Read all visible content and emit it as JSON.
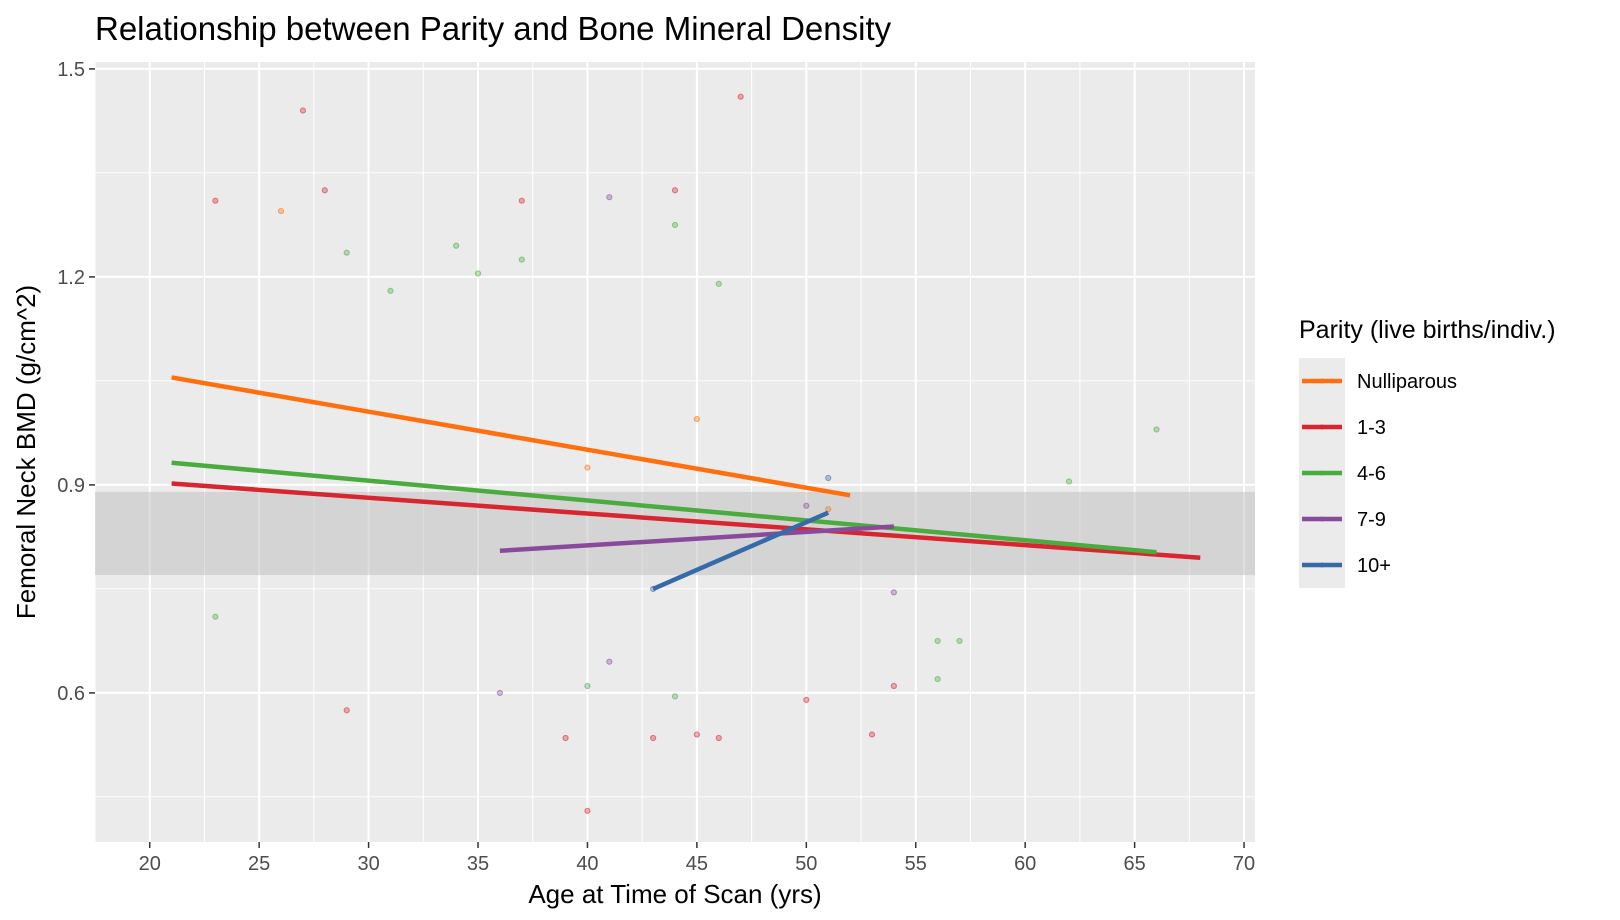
{
  "chart_data": {
    "type": "scatter",
    "title": "Relationship between Parity and Bone Mineral Density",
    "xlabel": "Age at Time of Scan (yrs)",
    "ylabel": "Femoral Neck BMD (g/cm^2)",
    "xlim": [
      17.5,
      70.5
    ],
    "ylim": [
      0.385,
      1.51
    ],
    "x_ticks": [
      20,
      25,
      30,
      35,
      40,
      45,
      50,
      55,
      60,
      65,
      70
    ],
    "y_ticks": [
      0.6,
      0.9,
      1.2,
      1.5
    ],
    "y_ticks_labels": [
      "0.6",
      "0.9",
      "1.2",
      "1.5"
    ],
    "grid": true,
    "reference_band": {
      "y_range": [
        0.77,
        0.89
      ]
    },
    "legend": {
      "title": "Parity (live births/indiv.)",
      "position": "right",
      "entries": [
        "Nulliparous",
        "1-3",
        "4-6",
        "7-9",
        "10+"
      ]
    },
    "series": [
      {
        "name": "Nulliparous",
        "color": "#ff6f0e",
        "fit_x": [
          21,
          52
        ],
        "fit_y": [
          1.055,
          0.885
        ],
        "points": [
          [
            26,
            1.295
          ],
          [
            40,
            0.925
          ],
          [
            45,
            0.995
          ],
          [
            51,
            0.865
          ]
        ]
      },
      {
        "name": "1-3",
        "color": "#d7262f",
        "fit_x": [
          21,
          68
        ],
        "fit_y": [
          0.902,
          0.795
        ],
        "points": [
          [
            27,
            1.44
          ],
          [
            47,
            1.46
          ],
          [
            23,
            1.31
          ],
          [
            28,
            1.325
          ],
          [
            37,
            1.31
          ],
          [
            44,
            1.325
          ],
          [
            40,
            0.43
          ],
          [
            39,
            0.535
          ],
          [
            43,
            0.535
          ],
          [
            45,
            0.54
          ],
          [
            46,
            0.535
          ],
          [
            29,
            0.575
          ],
          [
            53,
            0.54
          ],
          [
            54,
            0.61
          ],
          [
            50,
            0.59
          ]
        ]
      },
      {
        "name": "4-6",
        "color": "#4aab3f",
        "fit_x": [
          21,
          66
        ],
        "fit_y": [
          0.932,
          0.803
        ],
        "points": [
          [
            29,
            1.235
          ],
          [
            34,
            1.245
          ],
          [
            35,
            1.205
          ],
          [
            37,
            1.225
          ],
          [
            44,
            1.275
          ],
          [
            46,
            1.19
          ],
          [
            31,
            1.18
          ],
          [
            62,
            0.905
          ],
          [
            66,
            0.98
          ],
          [
            56,
            0.675
          ],
          [
            57,
            0.675
          ],
          [
            56,
            0.62
          ],
          [
            23,
            0.71
          ],
          [
            44,
            0.595
          ],
          [
            40,
            0.61
          ]
        ]
      },
      {
        "name": "7-9",
        "color": "#8a4a9c",
        "fit_x": [
          36,
          54
        ],
        "fit_y": [
          0.805,
          0.84
        ],
        "points": [
          [
            41,
            1.315
          ],
          [
            36,
            0.6
          ],
          [
            41,
            0.645
          ],
          [
            54,
            0.745
          ],
          [
            50,
            0.87
          ]
        ]
      },
      {
        "name": "10+",
        "color": "#356ba8",
        "fit_x": [
          43,
          51
        ],
        "fit_y": [
          0.75,
          0.86
        ],
        "points": [
          [
            51,
            0.91
          ],
          [
            43,
            0.75
          ]
        ]
      }
    ]
  }
}
